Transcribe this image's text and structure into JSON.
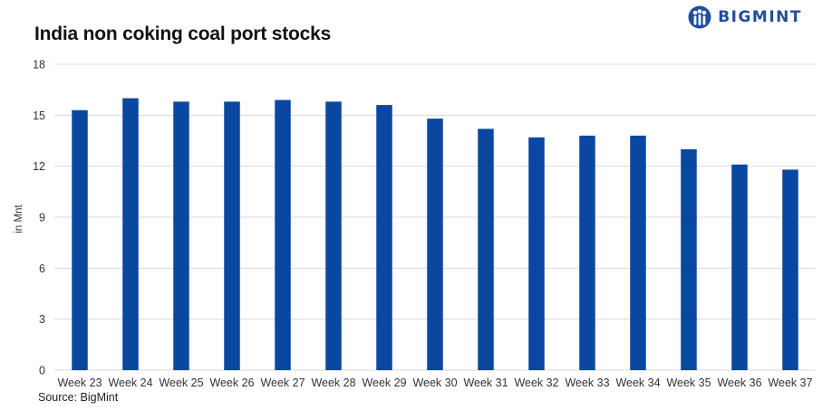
{
  "brand": {
    "name": "BIGMINT",
    "color": "#1f4e9c"
  },
  "chart_data": {
    "type": "bar",
    "title": "India non coking coal port stocks",
    "ylabel": "in Mnt",
    "xlabel": "",
    "source": "Source: BigMint",
    "categories": [
      "Week 23",
      "Week 24",
      "Week 25",
      "Week 26",
      "Week 27",
      "Week 28",
      "Week 29",
      "Week 30",
      "Week 31",
      "Week 32",
      "Week 33",
      "Week 34",
      "Week 35",
      "Week 36",
      "Week 37"
    ],
    "series": [
      {
        "values": [
          15.3,
          16.0,
          15.8,
          15.8,
          15.9,
          15.8,
          15.6,
          14.8,
          14.2,
          13.7,
          13.8,
          13.8,
          13.0,
          12.1,
          11.8
        ]
      }
    ],
    "ylim": [
      0,
      18
    ],
    "yticks": [
      0,
      3,
      6,
      9,
      12,
      15,
      18
    ],
    "grid": true,
    "bar_color": "#0a47a1",
    "grid_color": "#d9d9d9"
  }
}
